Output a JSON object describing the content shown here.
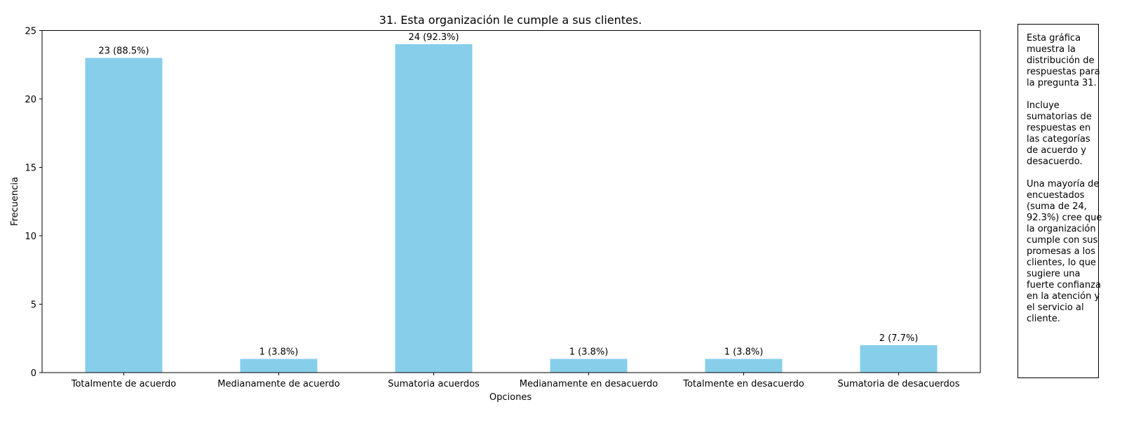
{
  "chart_data": {
    "type": "bar",
    "title": "31. Esta organización le cumple a sus clientes.",
    "xlabel": "Opciones",
    "ylabel": "Frecuencia",
    "ylim": [
      0,
      25
    ],
    "yticks": [
      0,
      5,
      10,
      15,
      20,
      25
    ],
    "grid": false,
    "bar_color": "#87CEEB",
    "categories": [
      "Totalmente de acuerdo",
      "Medianamente de acuerdo",
      "Sumatoria acuerdos",
      "Medianamente en desacuerdo",
      "Totalmente en desacuerdo",
      "Sumatoria de desacuerdos"
    ],
    "values": [
      23,
      1,
      24,
      1,
      1,
      2
    ],
    "data_labels": [
      "23 (88.5%)",
      "1 (3.8%)",
      "24 (92.3%)",
      "1 (3.8%)",
      "1 (3.8%)",
      "2 (7.7%)"
    ]
  },
  "note": {
    "paragraphs": [
      "Esta gráfica muestra la distribución de respuestas para la pregunta 31.",
      "Incluye sumatorias de respuestas en las categorías de acuerdo y desacuerdo.",
      "Una mayoría de encuestados (suma de 24, 92.3%) cree que la organización cumple con sus promesas a los clientes, lo que sugiere una fuerte confianza en la atención y el servicio al cliente."
    ]
  }
}
